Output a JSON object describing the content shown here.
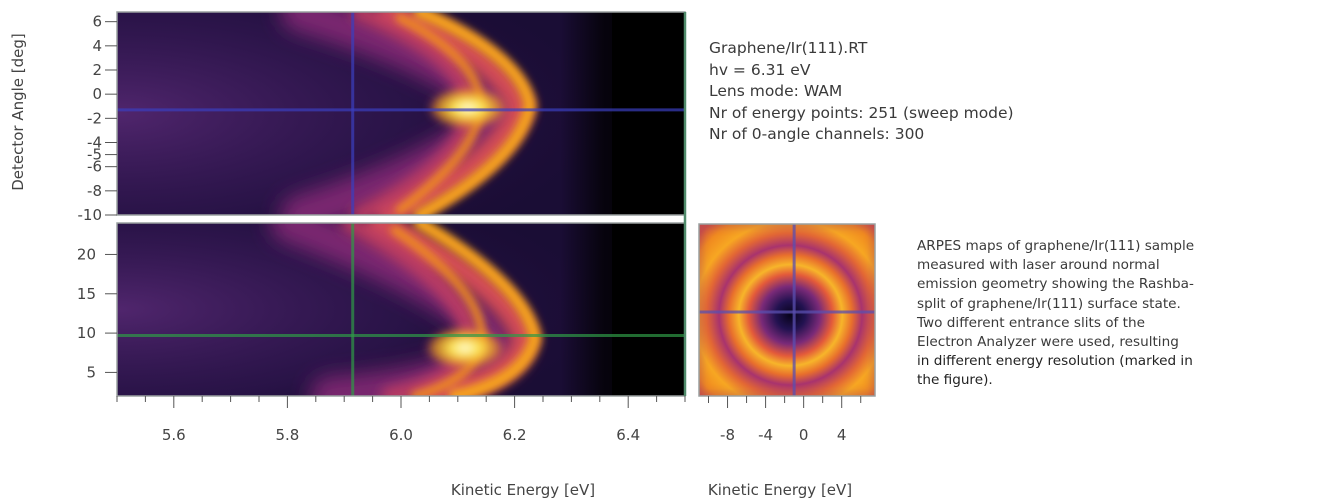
{
  "chart_data": [
    {
      "type": "heatmap",
      "panel": "top",
      "xlabel": "",
      "ylabel": "",
      "xlim": [
        5.5,
        6.5
      ],
      "ylim": [
        -10,
        6.8
      ],
      "y_ticks": [
        6,
        4,
        2,
        0,
        -2,
        -4,
        -5,
        -6,
        -8,
        -10
      ],
      "crosshair": {
        "x": 5.915,
        "y": -1.3
      },
      "features": {
        "dispersion_apex_ke": 6.11,
        "intensity_max_ke": 6.11,
        "intensity_max_angle": -1.3,
        "cutoff_ke": 6.33
      }
    },
    {
      "type": "heatmap",
      "panel": "bottom",
      "xlabel": "Kinetic Energy [eV]",
      "ylabel": "",
      "xlim": [
        5.5,
        6.5
      ],
      "ylim": [
        2,
        24
      ],
      "x_ticks": [
        5.6,
        5.8,
        6.0,
        6.2,
        6.4
      ],
      "y_ticks": [
        20,
        15,
        10,
        5
      ],
      "crosshair": {
        "x": 5.915,
        "y": 9.7
      },
      "features": {
        "dispersion_apex_ke": 6.11,
        "intensity_max_ke": 6.11,
        "intensity_max_angle": 9.7,
        "cutoff_ke": 6.33
      }
    },
    {
      "type": "heatmap",
      "panel": "constant-energy map",
      "xlabel": "Kinetic Energy [eV]",
      "ylabel": "",
      "xlim": [
        -11,
        7.5
      ],
      "x_ticks": [
        -8,
        -4,
        0,
        4
      ],
      "crosshair": {
        "x": -1,
        "y": 0
      }
    }
  ],
  "shared_ylabel": "Detector Angle [deg]",
  "info": [
    "Graphene/Ir(111).RT",
    "hv = 6.31 eV",
    "Lens mode: WAM",
    "Nr of energy points: 251 (sweep mode)",
    "Nr of 0-angle channels: 300"
  ],
  "caption": [
    "ARPES maps of graphene/Ir(111) sample",
    "measured with laser around normal",
    "emission geometry showing the Rashba-",
    "split of graphene/Ir(111) surface state.",
    "Two different entrance slits of the",
    "Electron Analyzer were used, resulting",
    "in different energy resolution (marked in",
    "the figure)."
  ],
  "colors": {
    "colormap": [
      "#000000",
      "#2a0f4e",
      "#5c1f6e",
      "#952b73",
      "#c8366a",
      "#ec6531",
      "#f69a14",
      "#f9cd39",
      "#fff6a8"
    ],
    "crosshair_top": "#3b3fbf",
    "crosshair_bottom": "#2f9a47",
    "text": "#3a3a3a"
  }
}
